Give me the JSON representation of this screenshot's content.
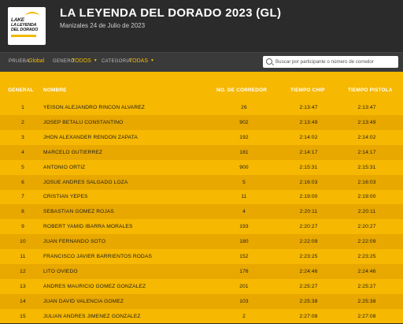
{
  "header": {
    "title": "LA LEYENDA DEL DORADO 2023 (GL)",
    "subtitle": "Manizales 24 de Julio de 2023",
    "logo": {
      "line1": "LAKE",
      "line2": "LA LEYENDA",
      "line3": "DEL DORADO"
    }
  },
  "filters": {
    "prueba_label": "PRUEBA",
    "prueba_value": "Global",
    "genero_label": "GENERO",
    "genero_value": "TODOS",
    "categoria_label": "CATEGORIA",
    "categoria_value": "TODAS",
    "search_placeholder": "Buscar por participante o número de corredor"
  },
  "table": {
    "columns": {
      "general": "GENERAL",
      "nombre": "NOMBRE",
      "bib": "NO. DE CORREDOR",
      "chip": "TIEMPO CHIP",
      "gun": "TIEMPO PISTOLA"
    },
    "rows": [
      {
        "general": "1",
        "name": "YEISON ALEJANDRO RINCON ALVAREZ",
        "bib": "26",
        "chip": "2:13:47",
        "gun": "2:13:47"
      },
      {
        "general": "2",
        "name": "JOSEP BETALU CONSTANTINO",
        "bib": "902",
        "chip": "2:13:49",
        "gun": "2:13:49"
      },
      {
        "general": "3",
        "name": "JHON ALEXANDER RENDON ZAPATA",
        "bib": "192",
        "chip": "2:14:02",
        "gun": "2:14:02"
      },
      {
        "general": "4",
        "name": "MARCELO GUTIERREZ",
        "bib": "181",
        "chip": "2:14:17",
        "gun": "2:14:17"
      },
      {
        "general": "5",
        "name": "ANTONIO ORTIZ",
        "bib": "900",
        "chip": "2:15:31",
        "gun": "2:15:31"
      },
      {
        "general": "6",
        "name": "JOSUE ANDRES SALGADO LOZA",
        "bib": "5",
        "chip": "2:16:03",
        "gun": "2:16:03"
      },
      {
        "general": "7",
        "name": "CRISTIAN YEPES",
        "bib": "11",
        "chip": "2:19:00",
        "gun": "2:19:00"
      },
      {
        "general": "8",
        "name": "SEBASTIAN GOMEZ ROJAS",
        "bib": "4",
        "chip": "2:20:11",
        "gun": "2:20:11"
      },
      {
        "general": "9",
        "name": "ROBERT YAMID IBARRA MORALES",
        "bib": "193",
        "chip": "2:20:27",
        "gun": "2:20:27"
      },
      {
        "general": "10",
        "name": "JUAN FERNANDO SOTO",
        "bib": "180",
        "chip": "2:22:09",
        "gun": "2:22:09"
      },
      {
        "general": "11",
        "name": "FRANCISCO JAVIER BARRIENTOS RODAS",
        "bib": "152",
        "chip": "2:23:25",
        "gun": "2:23:25"
      },
      {
        "general": "12",
        "name": "LITO OVIEDO",
        "bib": "176",
        "chip": "2:24:46",
        "gun": "2:24:46"
      },
      {
        "general": "13",
        "name": "ANDRES MAURICIO GOMEZ GONZALEZ",
        "bib": "201",
        "chip": "2:25:27",
        "gun": "2:25:27"
      },
      {
        "general": "14",
        "name": "JUAN DAVID VALENCIA GOMEZ",
        "bib": "103",
        "chip": "2:25:38",
        "gun": "2:25:38"
      },
      {
        "general": "15",
        "name": "JULIAN ANDRES JIMENEZ GONZALEZ",
        "bib": "2",
        "chip": "2:27:08",
        "gun": "2:27:08"
      }
    ]
  },
  "colors": {
    "accent": "#f6b800",
    "row_alt": "#e9a800",
    "header_bg": "#2b2b2b",
    "filter_bg": "#3a3a3a"
  }
}
